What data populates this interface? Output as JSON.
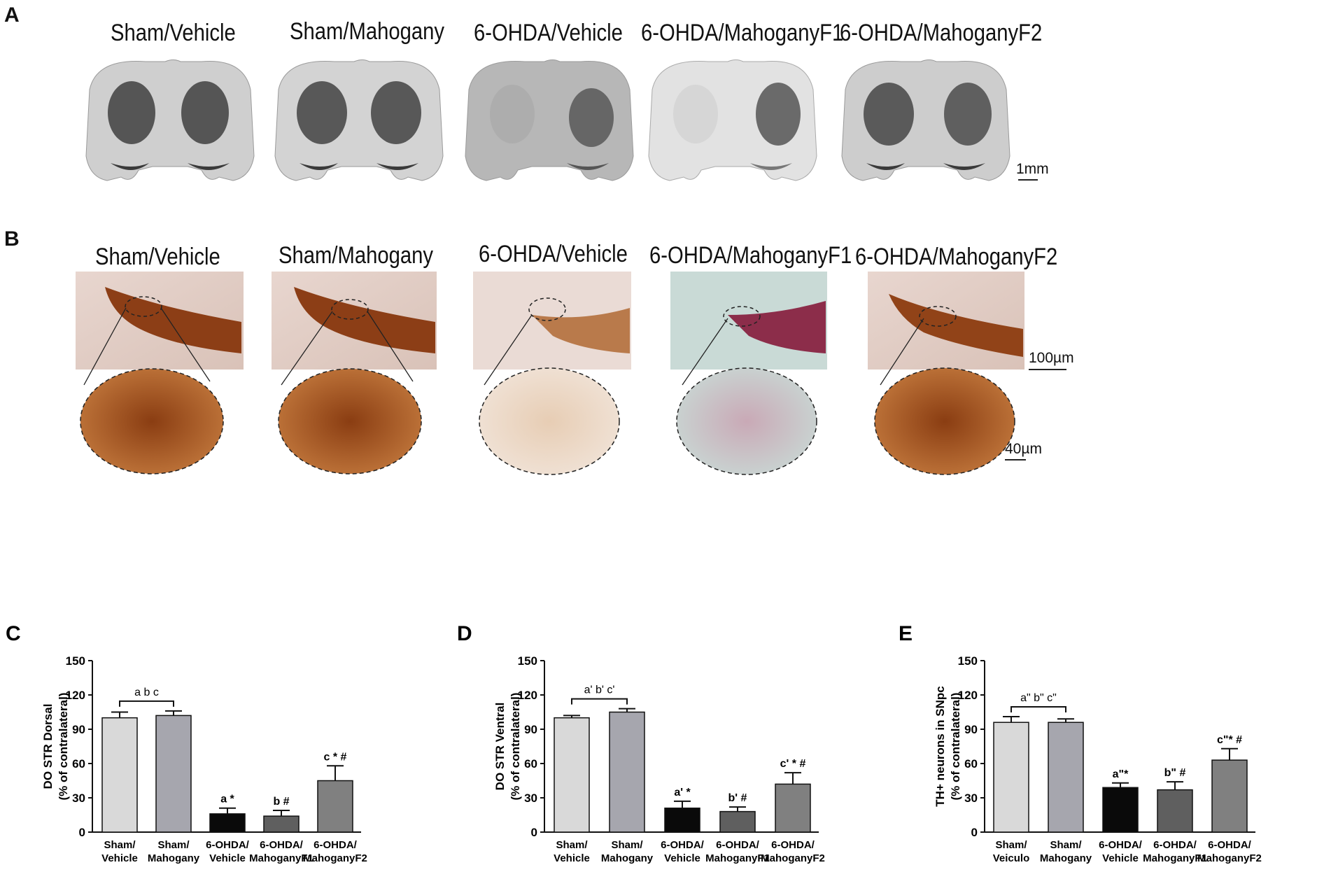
{
  "panels": {
    "A": {
      "letter": "A",
      "groups": [
        "Sham/Vehicle",
        "Sham/Mahogany",
        "6-OHDA/Vehicle",
        "6-OHDA/MahoganyF1",
        "6-OHDA/MahoganyF2"
      ],
      "scale_label": "1mm"
    },
    "B": {
      "letter": "B",
      "groups": [
        "Sham/Vehicle",
        "Sham/Mahogany",
        "6-OHDA/Vehicle",
        "6-OHDA/MahoganyF1",
        "6-OHDA/MahoganyF2"
      ],
      "scale_label_main": "100µm",
      "scale_label_inset": "40µm"
    }
  },
  "chart_data": [
    {
      "panel": "C",
      "type": "bar",
      "ylabel": [
        "DO STR Dorsal",
        "(% of contralateral)"
      ],
      "ylim": [
        0,
        150
      ],
      "yticks": [
        "0",
        "30",
        "60",
        "90",
        "120",
        "150"
      ],
      "categories": [
        [
          "Sham/",
          "Vehicle"
        ],
        [
          "Sham/",
          "Mahogany"
        ],
        [
          "6-OHDA/",
          "Vehicle"
        ],
        [
          "6-OHDA/",
          "MahoganyF1"
        ],
        [
          "6-OHDA/",
          "MahoganyF2"
        ]
      ],
      "values": [
        100,
        102,
        16,
        14,
        45
      ],
      "errors": [
        5,
        4,
        5,
        5,
        13
      ],
      "bar_colors": [
        "#d9d9d9",
        "#a6a6ae",
        "#0a0a0a",
        "#5f5f5f",
        "#808080"
      ],
      "annotations": [
        "",
        "",
        "a *",
        "b #",
        "c * #"
      ],
      "bracket_label": "a b c"
    },
    {
      "panel": "D",
      "type": "bar",
      "ylabel": [
        "DO STR Ventral",
        "(% of contralateral)"
      ],
      "ylim": [
        0,
        150
      ],
      "yticks": [
        "0",
        "30",
        "60",
        "90",
        "120",
        "150"
      ],
      "categories": [
        [
          "Sham/",
          "Vehicle"
        ],
        [
          "Sham/",
          "Mahogany"
        ],
        [
          "6-OHDA/",
          "Vehicle"
        ],
        [
          "6-OHDA/",
          "MahoganyF1"
        ],
        [
          "6-OHDA/",
          "MahoganyF2"
        ]
      ],
      "values": [
        100,
        105,
        21,
        18,
        42
      ],
      "errors": [
        2,
        3,
        6,
        4,
        10
      ],
      "bar_colors": [
        "#d9d9d9",
        "#a6a6ae",
        "#0a0a0a",
        "#5f5f5f",
        "#808080"
      ],
      "annotations": [
        "",
        "",
        "a' *",
        "b' #",
        "c' * #"
      ],
      "bracket_label": "a' b' c'"
    },
    {
      "panel": "E",
      "type": "bar",
      "ylabel": [
        "TH+ neurons in SNpc",
        "(% of contralateral)"
      ],
      "ylim": [
        0,
        150
      ],
      "yticks": [
        "0",
        "30",
        "60",
        "90",
        "120",
        "150"
      ],
      "categories": [
        [
          "Sham/",
          "Veiculo"
        ],
        [
          "Sham/",
          "Mahogany"
        ],
        [
          "6-OHDA/",
          "Vehicle"
        ],
        [
          "6-OHDA/",
          "MahoganyF1"
        ],
        [
          "6-OHDA/",
          "MahoganyF2"
        ]
      ],
      "values": [
        96,
        96,
        39,
        37,
        63
      ],
      "errors": [
        5,
        3,
        4,
        7,
        10
      ],
      "bar_colors": [
        "#d9d9d9",
        "#a6a6ae",
        "#0a0a0a",
        "#5f5f5f",
        "#808080"
      ],
      "annotations": [
        "",
        "",
        "a\"*",
        "b\" #",
        "c\"* #"
      ],
      "bracket_label": "a\"  b\" c\""
    }
  ]
}
